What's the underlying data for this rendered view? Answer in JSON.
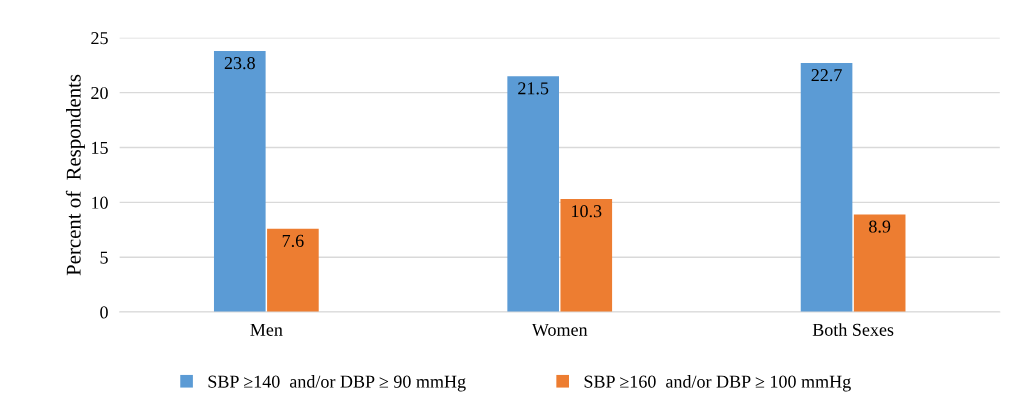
{
  "chart_data": {
    "type": "bar",
    "ylabel": "Percent of  Respondents",
    "categories": [
      "Men",
      "Women",
      "Both Sexes"
    ],
    "series": [
      {
        "name": "SBP ≥140  and/or DBP ≥ 90 mmHg",
        "color": "#5b9bd5",
        "values": [
          23.8,
          21.5,
          22.7
        ]
      },
      {
        "name": "SBP ≥160  and/or DBP ≥ 100 mmHg",
        "color": "#ed7d31",
        "values": [
          7.6,
          10.3,
          8.9
        ]
      }
    ],
    "ylim": [
      0,
      25
    ],
    "yticks": [
      0,
      5,
      10,
      15,
      20,
      25
    ],
    "grid": "y",
    "legend": "bottom",
    "data_labels": true
  }
}
